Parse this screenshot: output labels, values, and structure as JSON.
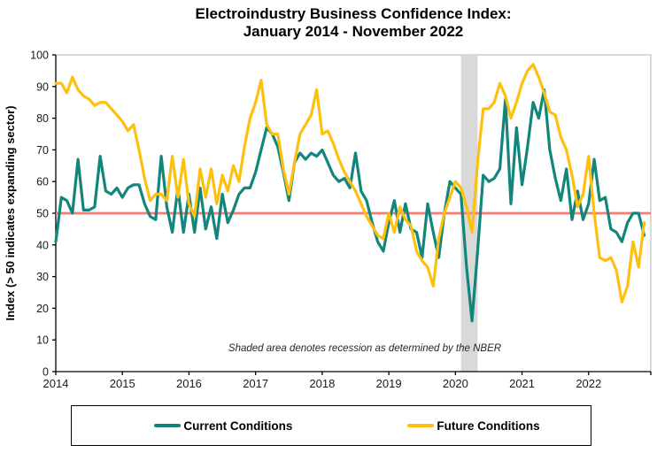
{
  "title": {
    "line1": "Electroindustry Business Confidence Index:",
    "line2": "January 2014 - November 2022"
  },
  "chart_data": {
    "type": "line",
    "title": "Electroindustry Business Confidence Index: January 2014 - November 2022",
    "xlabel": "",
    "ylabel": "Index (> 50 indicates expanding sector)",
    "ylim": [
      0,
      100
    ],
    "y_tick_step": 10,
    "x_start": "2014-01",
    "x_end": "2022-11",
    "x_tick_labels": [
      "2014",
      "2015",
      "2016",
      "2017",
      "2018",
      "2019",
      "2020",
      "2021",
      "2022"
    ],
    "grid": "off",
    "legend_position": "bottom",
    "annotation": "Shaded area denotes recession as determined by the NBER",
    "baseline": {
      "value": 50,
      "color": "#F87B72"
    },
    "recession_band": {
      "start": "2020-02",
      "end": "2020-04",
      "color": "#D9D9D9",
      "source": "NBER"
    },
    "series": [
      {
        "name": "Current Conditions",
        "color": "#12857C",
        "values": [
          41,
          55,
          54,
          50,
          67,
          51,
          51,
          52,
          68,
          57,
          56,
          58,
          55,
          58,
          59,
          59,
          53,
          49,
          48,
          68,
          52,
          44,
          58,
          44,
          56,
          44,
          58,
          45,
          52,
          42,
          56,
          47,
          51,
          56,
          58,
          58,
          63,
          70,
          77,
          75,
          71,
          63,
          54,
          66,
          69,
          67,
          69,
          68,
          70,
          66,
          62,
          60,
          61,
          58,
          69,
          57,
          54,
          47,
          41,
          38,
          47,
          54,
          44,
          53,
          45,
          44,
          36,
          53,
          44,
          36,
          50,
          60,
          58,
          56,
          33,
          16,
          38,
          62,
          60,
          61,
          64,
          86,
          53,
          77,
          59,
          71,
          85,
          80,
          89,
          70,
          61,
          54,
          64,
          48,
          57,
          48,
          53,
          67,
          54,
          55,
          45,
          44,
          41,
          47,
          50,
          50,
          43
        ]
      },
      {
        "name": "Future Conditions",
        "color": "#FDC010",
        "values": [
          91,
          91,
          88,
          93,
          89,
          87,
          86,
          84,
          85,
          85,
          83,
          81,
          79,
          76,
          78,
          70,
          61,
          54,
          56,
          56,
          54,
          68,
          55,
          67,
          53,
          49,
          64,
          55,
          64,
          53,
          62,
          57,
          65,
          60,
          71,
          80,
          85,
          92,
          78,
          75,
          75,
          64,
          56,
          66,
          75,
          78,
          81,
          89,
          75,
          76,
          72,
          67,
          63,
          60,
          57,
          53,
          49,
          46,
          43,
          42,
          50,
          44,
          52,
          48,
          46,
          38,
          35,
          33,
          27,
          42,
          50,
          55,
          60,
          58,
          52,
          44,
          66,
          83,
          83,
          85,
          91,
          87,
          80,
          85,
          91,
          95,
          97,
          93,
          88,
          82,
          81,
          74,
          70,
          62,
          52,
          56,
          68,
          50,
          36,
          35,
          36,
          32,
          22,
          27,
          41,
          33,
          47
        ]
      }
    ],
    "colors": {
      "axis": "#000000",
      "plot_border": "#D9D9D9"
    }
  }
}
